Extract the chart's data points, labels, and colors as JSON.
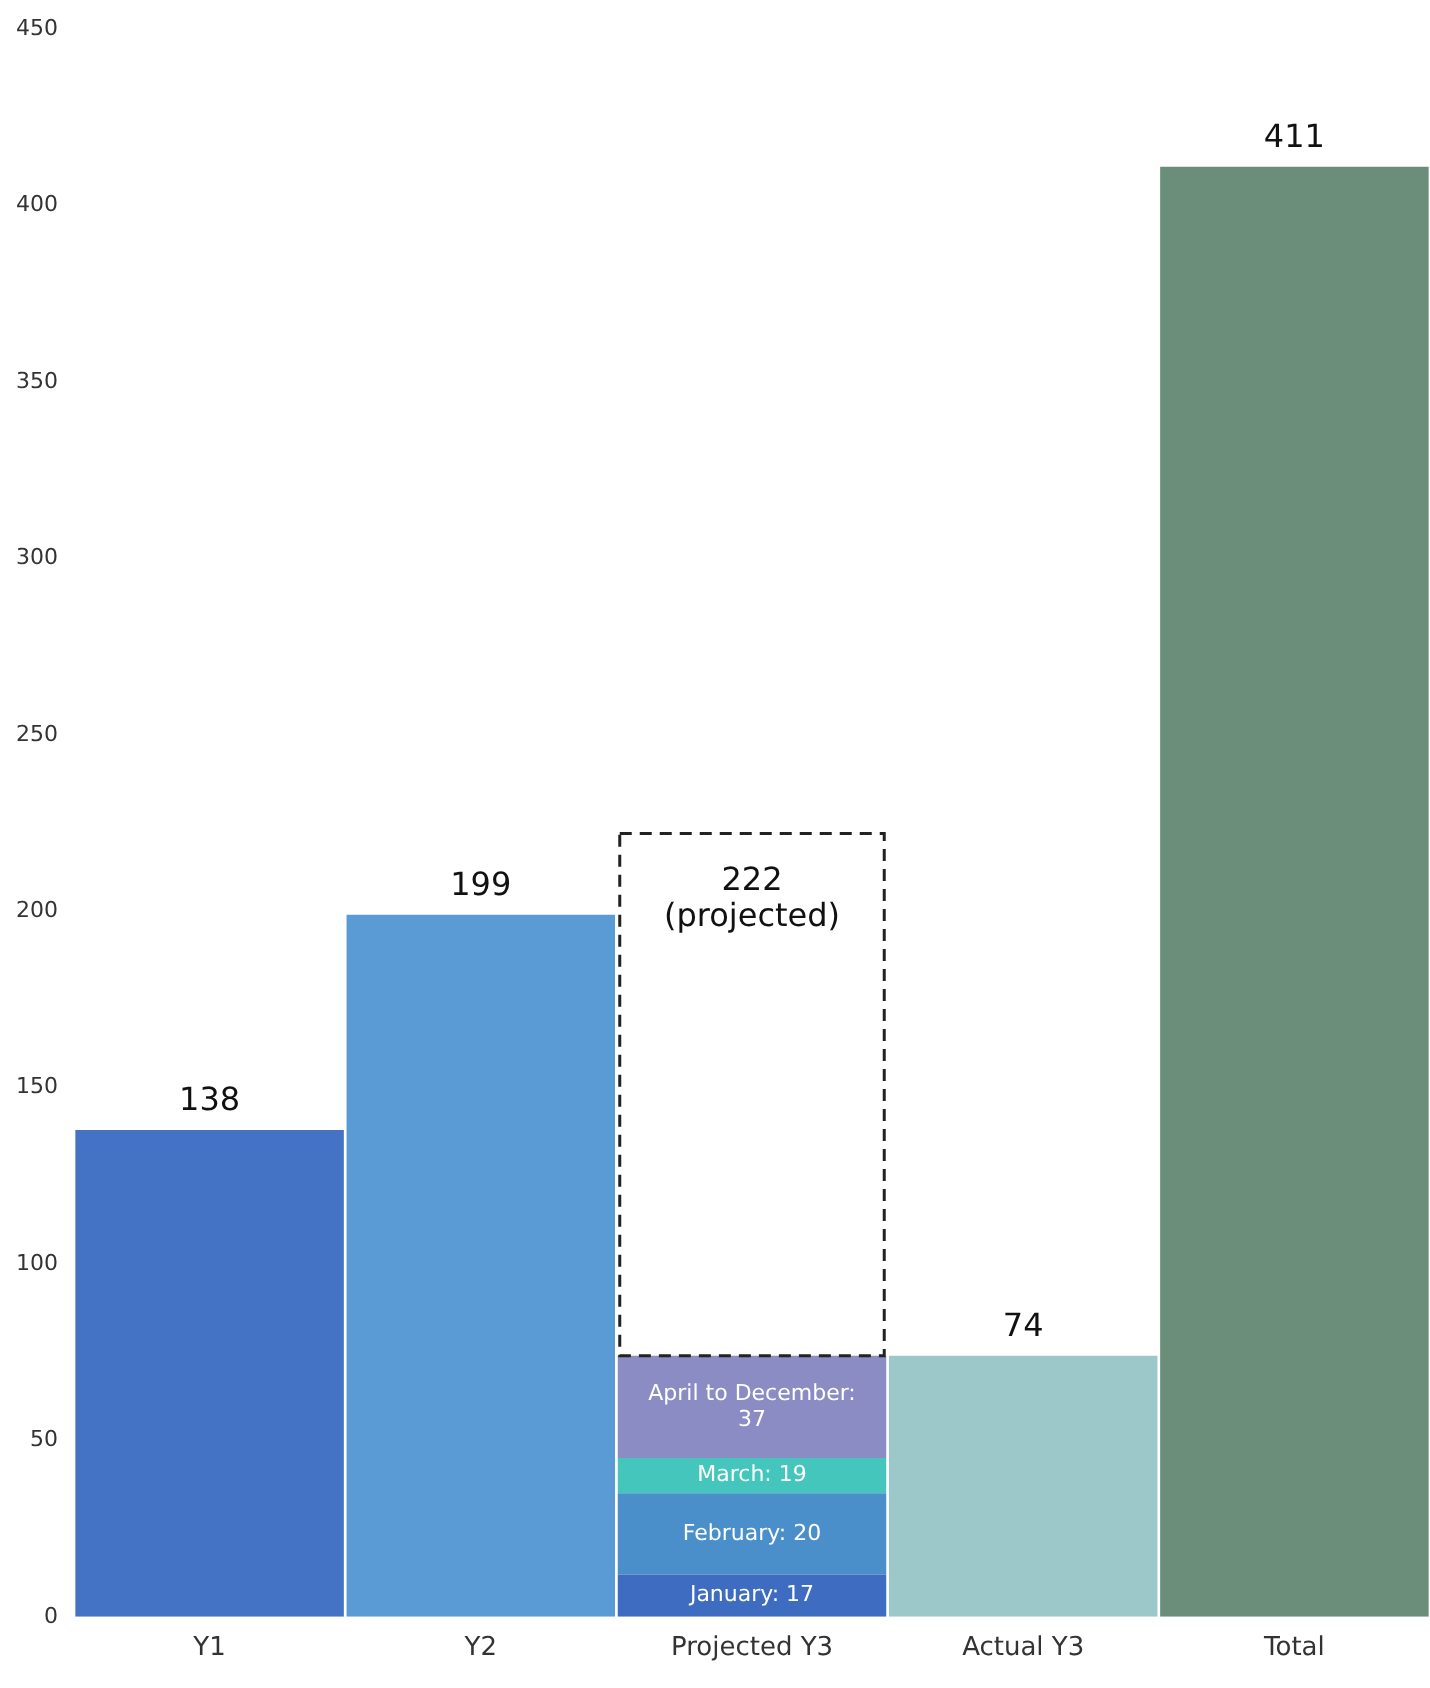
{
  "chart_data": {
    "type": "bar",
    "stacked": true,
    "categories": [
      "Y1",
      "Y2",
      "Projected Y3",
      "Actual Y3",
      "Total"
    ],
    "ylim": [
      0,
      450
    ],
    "yticks": [
      0,
      50,
      100,
      150,
      200,
      250,
      300,
      350,
      400,
      450
    ],
    "series": [
      {
        "colors": [
          "#4472c4",
          "#5b9bd5",
          null,
          "#9cc8c9",
          "#6b8e7a"
        ],
        "values": [
          138,
          199,
          null,
          74,
          411
        ]
      },
      {
        "color": "#3d6cc0",
        "values": [
          null,
          null,
          12,
          null,
          null
        ],
        "value_labels": [
          null,
          null,
          "January: 17",
          null,
          null
        ]
      },
      {
        "color": "#4a8fc9",
        "values": [
          null,
          null,
          23,
          null,
          null
        ],
        "value_labels": [
          null,
          null,
          "February: 20",
          null,
          null
        ]
      },
      {
        "color": "#45c6bd",
        "values": [
          null,
          null,
          10,
          null,
          null
        ],
        "value_labels": [
          null,
          null,
          "March: 19",
          null,
          null
        ]
      },
      {
        "color": "#8c8cc4",
        "values": [
          null,
          null,
          29,
          null,
          null
        ],
        "value_labels": [
          null,
          null,
          "April to December: 37",
          null,
          null
        ]
      },
      {
        "color": "#ffffff",
        "line_style": "dashed",
        "values": [
          null,
          null,
          148,
          null,
          null
        ]
      }
    ],
    "totals": [
      "138",
      "199",
      "222\n(projected)",
      "74",
      "411"
    ]
  }
}
